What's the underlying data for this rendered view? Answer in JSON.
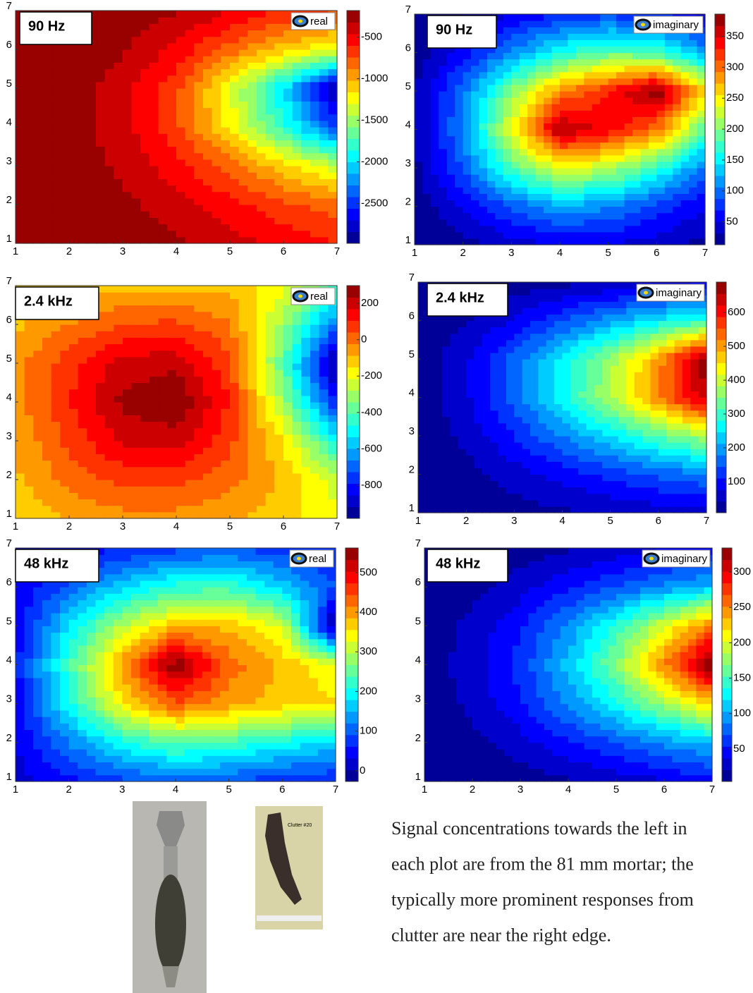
{
  "chart_data": [
    {
      "type": "contour",
      "label": "90 Hz",
      "legend": "real",
      "colormap": "jet",
      "x": [
        1,
        2,
        3,
        4,
        5,
        6,
        7
      ],
      "y": [
        1,
        2,
        3,
        4,
        5,
        6,
        7
      ],
      "z": [
        [
          -200,
          -200,
          -230,
          -300,
          -400,
          -500,
          -600
        ],
        [
          -200,
          -210,
          -280,
          -400,
          -550,
          -700,
          -800
        ],
        [
          -200,
          -230,
          -350,
          -550,
          -800,
          -1100,
          -1400
        ],
        [
          -200,
          -250,
          -400,
          -700,
          -1200,
          -1800,
          -2500
        ],
        [
          -200,
          -250,
          -400,
          -700,
          -1300,
          -2000,
          -2950
        ],
        [
          -200,
          -210,
          -300,
          -500,
          -800,
          -1100,
          -1300
        ],
        [
          -200,
          -200,
          -220,
          -300,
          -450,
          -600,
          -700
        ]
      ],
      "xlim": [
        1,
        7
      ],
      "ylim": [
        1,
        7
      ],
      "xticks": [
        1,
        2,
        3,
        4,
        5,
        6,
        7
      ],
      "yticks": [
        1,
        2,
        3,
        4,
        5,
        6,
        7
      ],
      "clim": [
        -2980,
        -180
      ],
      "cticks": [
        -500,
        -1000,
        -1500,
        -2000,
        -2500
      ]
    },
    {
      "type": "contour",
      "label": "90 Hz",
      "legend": "imaginary",
      "colormap": "jet",
      "x": [
        1,
        2,
        3,
        4,
        5,
        6,
        7
      ],
      "y": [
        1,
        2,
        3,
        4,
        5,
        6,
        7
      ],
      "z": [
        [
          15,
          25,
          40,
          50,
          50,
          40,
          25
        ],
        [
          20,
          50,
          90,
          120,
          110,
          80,
          50
        ],
        [
          25,
          90,
          180,
          240,
          220,
          170,
          100
        ],
        [
          30,
          110,
          240,
          370,
          340,
          300,
          180
        ],
        [
          30,
          100,
          200,
          290,
          330,
          385,
          260
        ],
        [
          20,
          60,
          110,
          160,
          190,
          180,
          120
        ],
        [
          15,
          30,
          50,
          70,
          80,
          70,
          40
        ]
      ],
      "xlim": [
        1,
        7
      ],
      "ylim": [
        1,
        7
      ],
      "xticks": [
        1,
        2,
        3,
        4,
        5,
        6,
        7
      ],
      "yticks": [
        1,
        2,
        3,
        4,
        5,
        6,
        7
      ],
      "clim": [
        13,
        386
      ],
      "cticks": [
        50,
        100,
        150,
        200,
        250,
        300,
        350
      ]
    },
    {
      "type": "contour",
      "label": "2.4 kHz",
      "legend": "real",
      "colormap": "jet",
      "x": [
        1,
        2,
        3,
        4,
        5,
        6,
        7
      ],
      "y": [
        1,
        2,
        3,
        4,
        5,
        6,
        7
      ],
      "z": [
        [
          -150,
          -80,
          -50,
          -50,
          -80,
          -120,
          -200
        ],
        [
          -100,
          0,
          60,
          60,
          0,
          -100,
          -250
        ],
        [
          -80,
          60,
          180,
          200,
          60,
          -150,
          -500
        ],
        [
          -50,
          100,
          250,
          290,
          100,
          -300,
          -800
        ],
        [
          -50,
          80,
          200,
          220,
          60,
          -400,
          -980
        ],
        [
          -100,
          -20,
          40,
          60,
          -20,
          -300,
          -700
        ],
        [
          -150,
          -120,
          -100,
          -100,
          -100,
          -200,
          -400
        ]
      ],
      "xlim": [
        1,
        7
      ],
      "ylim": [
        1,
        7
      ],
      "xticks": [
        1,
        2,
        3,
        4,
        5,
        6,
        7
      ],
      "yticks": [
        1,
        2,
        3,
        4,
        5,
        6,
        7
      ],
      "clim": [
        -982,
        297
      ],
      "cticks": [
        200,
        0,
        -200,
        -400,
        -600,
        -800
      ]
    },
    {
      "type": "contour",
      "label": "2.4 kHz",
      "legend": "imaginary",
      "colormap": "jet",
      "x": [
        1,
        2,
        3,
        4,
        5,
        6,
        7
      ],
      "y": [
        1,
        2,
        3,
        4,
        5,
        6,
        7
      ],
      "z": [
        [
          8,
          15,
          25,
          35,
          45,
          55,
          60
        ],
        [
          10,
          30,
          60,
          90,
          120,
          150,
          180
        ],
        [
          15,
          50,
          110,
          180,
          250,
          320,
          380
        ],
        [
          20,
          70,
          160,
          270,
          380,
          520,
          650
        ],
        [
          20,
          70,
          160,
          260,
          370,
          500,
          690
        ],
        [
          15,
          40,
          80,
          140,
          200,
          260,
          300
        ],
        [
          10,
          15,
          20,
          30,
          40,
          50,
          60
        ]
      ],
      "xlim": [
        1,
        7
      ],
      "ylim": [
        1,
        7
      ],
      "xticks": [
        1,
        2,
        3,
        4,
        5,
        6,
        7
      ],
      "yticks": [
        1,
        2,
        3,
        4,
        5,
        6,
        7
      ],
      "clim": [
        8,
        690
      ],
      "cticks": [
        100,
        200,
        300,
        400,
        500,
        600
      ]
    },
    {
      "type": "contour",
      "label": "48 kHz",
      "legend": "real",
      "colormap": "jet",
      "x": [
        1,
        2,
        3,
        4,
        5,
        6,
        7
      ],
      "y": [
        1,
        2,
        3,
        4,
        5,
        6,
        7
      ],
      "z": [
        [
          20,
          50,
          80,
          100,
          90,
          70,
          60
        ],
        [
          30,
          120,
          200,
          250,
          230,
          200,
          170
        ],
        [
          40,
          200,
          350,
          440,
          400,
          370,
          360
        ],
        [
          50,
          230,
          400,
          560,
          430,
          380,
          330
        ],
        [
          40,
          180,
          300,
          380,
          380,
          320,
          -20
        ],
        [
          30,
          100,
          170,
          220,
          230,
          170,
          90
        ],
        [
          20,
          40,
          60,
          80,
          90,
          70,
          60
        ]
      ],
      "xlim": [
        1,
        7
      ],
      "ylim": [
        1,
        7
      ],
      "xticks": [
        1,
        2,
        3,
        4,
        5,
        6,
        7
      ],
      "yticks": [
        1,
        2,
        3,
        4,
        5,
        6,
        7
      ],
      "clim": [
        -27,
        562
      ],
      "cticks": [
        0,
        100,
        200,
        300,
        400,
        500
      ]
    },
    {
      "type": "contour",
      "label": "48 kHz",
      "legend": "imaginary",
      "colormap": "jet",
      "x": [
        1,
        2,
        3,
        4,
        5,
        6,
        7
      ],
      "y": [
        1,
        2,
        3,
        4,
        5,
        6,
        7
      ],
      "z": [
        [
          5,
          8,
          12,
          18,
          25,
          35,
          45
        ],
        [
          6,
          15,
          30,
          50,
          70,
          90,
          110
        ],
        [
          8,
          25,
          50,
          90,
          130,
          180,
          230
        ],
        [
          10,
          30,
          60,
          110,
          170,
          250,
          334
        ],
        [
          10,
          25,
          50,
          90,
          140,
          200,
          260
        ],
        [
          8,
          15,
          30,
          50,
          70,
          90,
          110
        ],
        [
          5,
          8,
          12,
          18,
          25,
          35,
          45
        ]
      ],
      "xlim": [
        1,
        7
      ],
      "ylim": [
        1,
        7
      ],
      "xticks": [
        1,
        2,
        3,
        4,
        5,
        6,
        7
      ],
      "yticks": [
        1,
        2,
        3,
        4,
        5,
        6,
        7
      ],
      "clim": [
        4,
        334
      ],
      "cticks": [
        50,
        100,
        150,
        200,
        250,
        300
      ]
    }
  ],
  "photo_label": "Clutter #20",
  "caption": [
    "Signal concentrations towards the left in",
    "each plot are from the 81 mm mortar; the",
    "typically more prominent responses from",
    "clutter are near the right edge."
  ]
}
